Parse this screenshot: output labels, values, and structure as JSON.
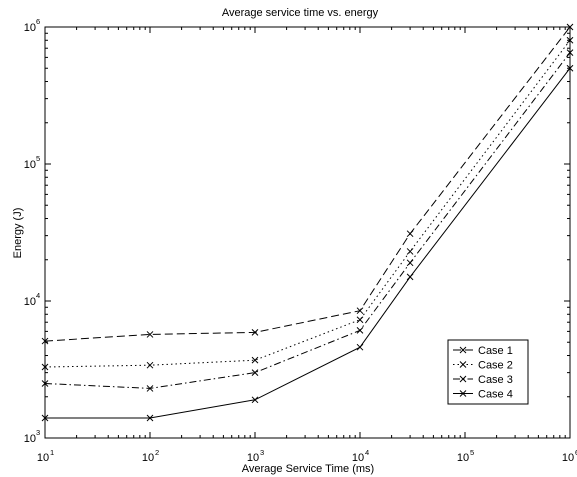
{
  "chart_data": {
    "type": "line",
    "title": "Average service time vs. energy",
    "xlabel": "Average Service Time (ms)",
    "ylabel": "Energy (J)",
    "xscale": "log",
    "yscale": "log",
    "xlim": [
      10,
      1000000
    ],
    "ylim": [
      1000,
      1000000
    ],
    "x_ticks": [
      {
        "base": "10",
        "exp": "1",
        "value": 10
      },
      {
        "base": "10",
        "exp": "2",
        "value": 100
      },
      {
        "base": "10",
        "exp": "3",
        "value": 1000
      },
      {
        "base": "10",
        "exp": "4",
        "value": 10000
      },
      {
        "base": "10",
        "exp": "5",
        "value": 100000
      },
      {
        "base": "10",
        "exp": "6",
        "value": 1000000
      }
    ],
    "y_ticks": [
      {
        "base": "10",
        "exp": "3",
        "value": 1000
      },
      {
        "base": "10",
        "exp": "4",
        "value": 10000
      },
      {
        "base": "10",
        "exp": "5",
        "value": 100000
      },
      {
        "base": "10",
        "exp": "6",
        "value": 1000000
      }
    ],
    "grid": false,
    "legend_position": "bottom-right",
    "series": [
      {
        "name": "Case 1",
        "dash": "dashed",
        "x": [
          10,
          100,
          1000,
          10000,
          30000,
          1000000
        ],
        "y": [
          5100,
          5700,
          5900,
          8500,
          31000,
          1000000
        ]
      },
      {
        "name": "Case 2",
        "dash": "dotted",
        "x": [
          10,
          100,
          1000,
          10000,
          30000,
          1000000
        ],
        "y": [
          3300,
          3400,
          3700,
          7300,
          23000,
          800000
        ]
      },
      {
        "name": "Case 3",
        "dash": "dash-dot",
        "x": [
          10,
          100,
          1000,
          10000,
          30000,
          1000000
        ],
        "y": [
          2500,
          2300,
          3000,
          6100,
          19000,
          650000
        ]
      },
      {
        "name": "Case 4",
        "dash": "solid",
        "x": [
          10,
          100,
          1000,
          10000,
          30000,
          1000000
        ],
        "y": [
          1400,
          1400,
          1900,
          4600,
          15000,
          500000
        ]
      }
    ]
  }
}
